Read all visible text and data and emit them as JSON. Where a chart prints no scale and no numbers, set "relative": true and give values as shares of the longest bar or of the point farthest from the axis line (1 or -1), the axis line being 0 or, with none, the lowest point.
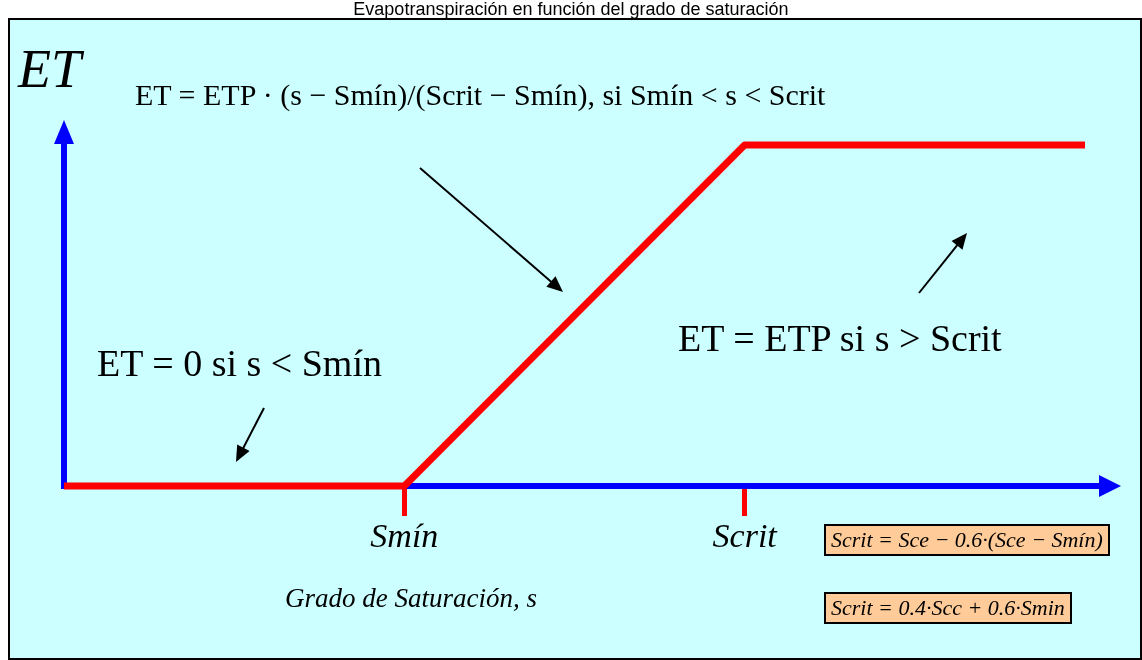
{
  "chart_data": {
    "type": "line",
    "title": "Evapotranspiración en función del grado de saturación",
    "xlabel": "Grado de Saturación, s",
    "ylabel": "ET",
    "categories": [
      null,
      "Smín",
      "Scrit",
      null
    ],
    "series": [
      {
        "color": "#ff0000",
        "values": [
          0,
          0,
          1,
          1
        ]
      }
    ],
    "relative": true,
    "marker": "none",
    "grid": false,
    "legend": false,
    "annotations": [
      "ET = ETP · (s − Smín)/(Scrit − Smín),  si  Smín < s < Scrit",
      "ET = 0  si  s < Smín",
      "ET = ETP  si  s > Scrit",
      "Scrit = Sce − 0.6·(Sce − Smín)",
      "Scrit = 0.4·Scc + 0.6·Smin"
    ]
  }
}
